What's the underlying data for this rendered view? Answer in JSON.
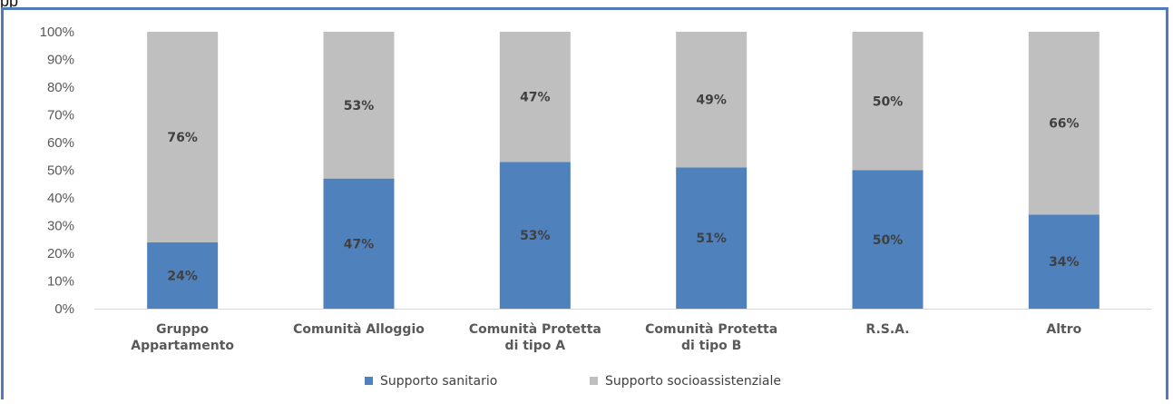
{
  "header_fragment": "pp",
  "chart_data": {
    "type": "bar",
    "stacked": true,
    "percent": true,
    "categories": [
      [
        "Gruppo",
        "Appartamento"
      ],
      [
        "Comunità Alloggio"
      ],
      [
        "Comunità Protetta",
        "di tipo A"
      ],
      [
        "Comunità Protetta",
        "di tipo B"
      ],
      [
        "R.S.A."
      ],
      [
        "Altro"
      ]
    ],
    "series": [
      {
        "name": "Supporto sanitario",
        "color": "#4f81bd",
        "values": [
          24,
          47,
          53,
          51,
          50,
          34
        ],
        "labels": [
          "24%",
          "47%",
          "53%",
          "51%",
          "50%",
          "34%"
        ]
      },
      {
        "name": "Supporto socioassistenziale",
        "color": "#bfbfbf",
        "values": [
          76,
          53,
          47,
          49,
          50,
          66
        ],
        "labels": [
          "76%",
          "53%",
          "47%",
          "49%",
          "50%",
          "66%"
        ]
      }
    ],
    "ylim": [
      0,
      100
    ],
    "yticks": [
      "0%",
      "10%",
      "20%",
      "30%",
      "40%",
      "50%",
      "60%",
      "70%",
      "80%",
      "90%",
      "100%"
    ],
    "grid": false,
    "legend_position": "bottom"
  }
}
